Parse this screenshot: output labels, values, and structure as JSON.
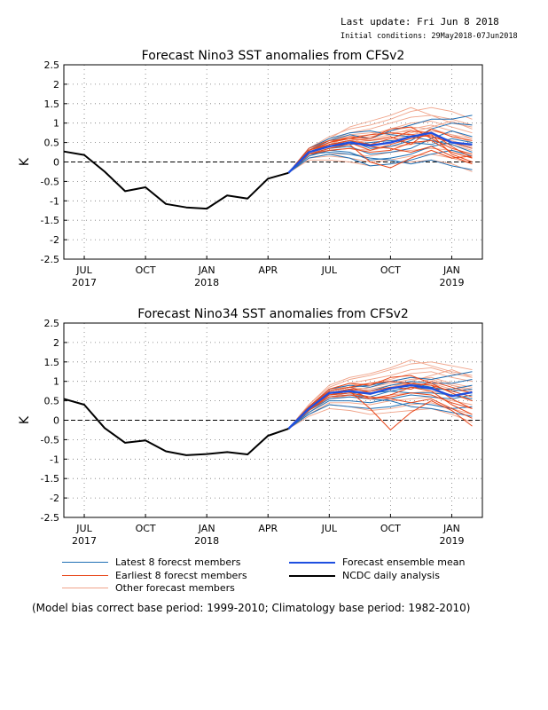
{
  "header": {
    "last_update": "Last update: Fri Jun  8 2018",
    "initial_conditions": "Initial conditions: 29May2018-07Jun2018"
  },
  "legend": {
    "latest": "Latest 8 forecst members",
    "earliest": "Earliest 8 forecst members",
    "other": "Other forecast members",
    "mean": "Forecast ensemble mean",
    "ncdc": "NCDC daily analysis"
  },
  "footnote": "(Model bias correct base period: 1999-2010; Climatology base period: 1982-2010)",
  "colors": {
    "latest": "#1f6fb4",
    "earliest": "#e8471a",
    "other": "#f0a48a",
    "mean": "#1e4fe0",
    "ncdc": "#000000"
  },
  "chart_data": [
    {
      "type": "line",
      "title": "Forecast Nino3 SST anomalies from CFSv2",
      "ylabel": "K",
      "ylim": [
        -2.5,
        2.5
      ],
      "yticks": [
        -2.5,
        -2,
        -1.5,
        -1,
        -0.5,
        0,
        0.5,
        1,
        1.5,
        2,
        2.5
      ],
      "xlim": [
        0,
        20.5
      ],
      "xticks": [
        {
          "x": 1,
          "label": "JUL",
          "year": "2017"
        },
        {
          "x": 4,
          "label": "OCT",
          "year": ""
        },
        {
          "x": 7,
          "label": "JAN",
          "year": "2018"
        },
        {
          "x": 10,
          "label": "APR",
          "year": ""
        },
        {
          "x": 13,
          "label": "JUL",
          "year": ""
        },
        {
          "x": 16,
          "label": "OCT",
          "year": ""
        },
        {
          "x": 19,
          "label": "JAN",
          "year": "2019"
        }
      ],
      "grid": true,
      "observed": {
        "name": "NCDC daily analysis",
        "x": [
          0,
          1,
          2,
          3,
          4,
          5,
          6,
          7,
          8,
          9,
          10,
          11
        ],
        "y": [
          0.27,
          0.18,
          -0.25,
          -0.75,
          -0.65,
          -1.08,
          -1.17,
          -1.2,
          -0.86,
          -0.94,
          -0.43,
          -0.28
        ]
      },
      "forecast_x": [
        11,
        12,
        13,
        14,
        15,
        16,
        17,
        18,
        19,
        20
      ],
      "ensemble_mean": [
        -0.28,
        0.25,
        0.4,
        0.5,
        0.42,
        0.5,
        0.65,
        0.75,
        0.5,
        0.45
      ],
      "latest_members": [
        [
          -0.28,
          0.3,
          0.55,
          0.7,
          0.6,
          0.8,
          0.95,
          1.1,
          1.1,
          1.2
        ],
        [
          -0.28,
          0.25,
          0.45,
          0.55,
          0.35,
          0.4,
          0.55,
          0.85,
          1.0,
          0.95
        ],
        [
          -0.28,
          0.2,
          0.35,
          0.4,
          0.2,
          0.25,
          0.35,
          0.6,
          0.8,
          0.65
        ],
        [
          -0.28,
          0.15,
          0.3,
          0.25,
          0.05,
          0.1,
          0.2,
          0.4,
          0.5,
          0.35
        ],
        [
          -0.28,
          0.1,
          0.2,
          0.1,
          -0.1,
          -0.05,
          0.05,
          0.2,
          0.3,
          0.15
        ],
        [
          -0.28,
          0.2,
          0.25,
          0.2,
          0.1,
          0.05,
          -0.05,
          0.05,
          -0.1,
          -0.2
        ],
        [
          -0.28,
          0.35,
          0.6,
          0.75,
          0.8,
          0.7,
          0.65,
          0.55,
          0.45,
          0.25
        ],
        [
          -0.28,
          0.25,
          0.4,
          0.45,
          0.5,
          0.55,
          0.5,
          0.45,
          0.6,
          0.5
        ]
      ],
      "earliest_members": [
        [
          -0.28,
          0.3,
          0.45,
          0.55,
          0.45,
          0.6,
          0.8,
          0.75,
          0.4,
          0.1
        ],
        [
          -0.28,
          0.25,
          0.4,
          0.5,
          0.3,
          0.45,
          0.6,
          0.7,
          0.2,
          0.0
        ],
        [
          -0.28,
          0.2,
          0.35,
          0.45,
          0.0,
          -0.15,
          0.1,
          0.3,
          0.1,
          0.15
        ],
        [
          -0.28,
          0.3,
          0.5,
          0.65,
          0.6,
          0.85,
          0.9,
          0.6,
          0.35,
          0.2
        ],
        [
          -0.28,
          0.35,
          0.55,
          0.6,
          0.55,
          0.65,
          0.45,
          0.85,
          0.65,
          0.55
        ],
        [
          -0.28,
          0.2,
          0.3,
          0.35,
          0.25,
          0.3,
          0.5,
          0.55,
          0.25,
          0.1
        ],
        [
          -0.28,
          0.25,
          0.45,
          0.5,
          0.4,
          0.35,
          0.25,
          0.4,
          0.15,
          -0.05
        ],
        [
          -0.28,
          0.3,
          0.5,
          0.6,
          0.7,
          0.75,
          0.7,
          0.65,
          0.5,
          0.35
        ]
      ],
      "other_members": [
        [
          -0.28,
          0.35,
          0.65,
          0.85,
          0.95,
          1.1,
          1.3,
          1.4,
          1.3,
          1.1
        ],
        [
          -0.28,
          0.3,
          0.55,
          0.75,
          0.85,
          1.0,
          1.15,
          1.2,
          1.0,
          0.9
        ],
        [
          -0.28,
          0.25,
          0.45,
          0.65,
          0.7,
          0.85,
          1.0,
          1.05,
          0.9,
          0.75
        ],
        [
          -0.28,
          0.2,
          0.4,
          0.55,
          0.6,
          0.7,
          0.85,
          0.95,
          0.8,
          0.6
        ],
        [
          -0.28,
          0.15,
          0.35,
          0.45,
          0.5,
          0.55,
          0.7,
          0.8,
          0.7,
          0.5
        ],
        [
          -0.28,
          0.25,
          0.5,
          0.6,
          0.45,
          0.5,
          0.6,
          0.7,
          0.55,
          0.4
        ],
        [
          -0.28,
          0.2,
          0.3,
          0.35,
          0.3,
          0.4,
          0.45,
          0.55,
          0.45,
          0.3
        ],
        [
          -0.28,
          0.1,
          0.2,
          0.2,
          0.15,
          0.25,
          0.3,
          0.35,
          0.3,
          0.2
        ],
        [
          -0.28,
          0.1,
          0.15,
          0.1,
          0.0,
          0.05,
          0.15,
          0.2,
          0.1,
          -0.05
        ],
        [
          -0.28,
          0.05,
          0.05,
          0.0,
          -0.1,
          -0.05,
          0.0,
          0.05,
          -0.05,
          -0.25
        ],
        [
          -0.28,
          0.3,
          0.6,
          0.9,
          1.05,
          1.2,
          1.4,
          1.2,
          1.1,
          0.95
        ],
        [
          -0.28,
          0.25,
          0.5,
          0.7,
          0.75,
          0.8,
          0.9,
          0.85,
          0.7,
          0.6
        ],
        [
          -0.28,
          0.2,
          0.35,
          0.5,
          0.55,
          0.6,
          0.75,
          0.9,
          1.05,
          0.85
        ],
        [
          -0.28,
          0.3,
          0.5,
          0.6,
          0.65,
          0.75,
          0.8,
          0.65,
          0.5,
          0.4
        ]
      ]
    },
    {
      "type": "line",
      "title": "Forecast Nino34 SST anomalies from CFSv2",
      "ylabel": "K",
      "ylim": [
        -2.5,
        2.5
      ],
      "yticks": [
        -2.5,
        -2,
        -1.5,
        -1,
        -0.5,
        0,
        0.5,
        1,
        1.5,
        2,
        2.5
      ],
      "xlim": [
        0,
        20.5
      ],
      "xticks": [
        {
          "x": 1,
          "label": "JUL",
          "year": "2017"
        },
        {
          "x": 4,
          "label": "OCT",
          "year": ""
        },
        {
          "x": 7,
          "label": "JAN",
          "year": "2018"
        },
        {
          "x": 10,
          "label": "APR",
          "year": ""
        },
        {
          "x": 13,
          "label": "JUL",
          "year": ""
        },
        {
          "x": 16,
          "label": "OCT",
          "year": ""
        },
        {
          "x": 19,
          "label": "JAN",
          "year": "2019"
        }
      ],
      "grid": true,
      "observed": {
        "name": "NCDC daily analysis",
        "x": [
          0,
          1,
          2,
          3,
          4,
          5,
          6,
          7,
          8,
          9,
          10,
          11
        ],
        "y": [
          0.55,
          0.4,
          -0.2,
          -0.58,
          -0.52,
          -0.8,
          -0.9,
          -0.87,
          -0.82,
          -0.88,
          -0.4,
          -0.22
        ]
      },
      "forecast_x": [
        11,
        12,
        13,
        14,
        15,
        16,
        17,
        18,
        19,
        20
      ],
      "ensemble_mean": [
        -0.22,
        0.3,
        0.7,
        0.75,
        0.68,
        0.82,
        0.9,
        0.82,
        0.62,
        0.72
      ],
      "latest_members": [
        [
          -0.22,
          0.35,
          0.8,
          0.9,
          0.85,
          1.0,
          1.1,
          1.05,
          1.15,
          1.25
        ],
        [
          -0.22,
          0.3,
          0.7,
          0.8,
          0.75,
          0.9,
          1.0,
          0.95,
          0.95,
          1.05
        ],
        [
          -0.22,
          0.25,
          0.6,
          0.65,
          0.6,
          0.75,
          0.85,
          0.8,
          0.8,
          0.9
        ],
        [
          -0.22,
          0.2,
          0.5,
          0.5,
          0.45,
          0.55,
          0.65,
          0.6,
          0.55,
          0.65
        ],
        [
          -0.22,
          0.15,
          0.4,
          0.35,
          0.3,
          0.35,
          0.45,
          0.4,
          0.3,
          0.35
        ],
        [
          -0.22,
          0.25,
          0.55,
          0.6,
          0.55,
          0.5,
          0.35,
          0.3,
          0.2,
          0.1
        ],
        [
          -0.22,
          0.35,
          0.75,
          0.85,
          0.9,
          1.0,
          0.95,
          0.85,
          0.75,
          0.8
        ],
        [
          -0.22,
          0.3,
          0.65,
          0.7,
          0.7,
          0.75,
          0.7,
          0.7,
          0.65,
          0.55
        ]
      ],
      "earliest_members": [
        [
          -0.22,
          0.35,
          0.75,
          0.85,
          0.7,
          0.8,
          0.95,
          0.9,
          0.55,
          0.3
        ],
        [
          -0.22,
          0.3,
          0.7,
          0.8,
          0.55,
          0.65,
          0.85,
          0.75,
          0.4,
          0.15
        ],
        [
          -0.22,
          0.25,
          0.65,
          0.75,
          0.3,
          -0.25,
          0.2,
          0.5,
          0.25,
          -0.15
        ],
        [
          -0.22,
          0.35,
          0.8,
          0.95,
          0.9,
          1.1,
          1.15,
          0.95,
          0.7,
          0.5
        ],
        [
          -0.22,
          0.3,
          0.7,
          0.8,
          0.75,
          0.85,
          0.8,
          1.0,
          0.85,
          0.7
        ],
        [
          -0.22,
          0.25,
          0.6,
          0.65,
          0.55,
          0.6,
          0.7,
          0.65,
          0.45,
          0.3
        ],
        [
          -0.22,
          0.3,
          0.65,
          0.7,
          0.6,
          0.55,
          0.45,
          0.55,
          0.3,
          0.05
        ],
        [
          -0.22,
          0.35,
          0.75,
          0.85,
          0.95,
          1.0,
          0.95,
          0.9,
          0.75,
          0.6
        ]
      ],
      "other_members": [
        [
          -0.22,
          0.4,
          0.85,
          1.05,
          1.15,
          1.3,
          1.45,
          1.5,
          1.4,
          1.3
        ],
        [
          -0.22,
          0.35,
          0.8,
          0.95,
          1.05,
          1.15,
          1.3,
          1.35,
          1.2,
          1.1
        ],
        [
          -0.22,
          0.3,
          0.75,
          0.85,
          0.95,
          1.05,
          1.2,
          1.25,
          1.1,
          1.0
        ],
        [
          -0.22,
          0.25,
          0.65,
          0.75,
          0.85,
          0.95,
          1.05,
          1.1,
          0.95,
          0.85
        ],
        [
          -0.22,
          0.2,
          0.55,
          0.65,
          0.7,
          0.8,
          0.9,
          0.95,
          0.8,
          0.7
        ],
        [
          -0.22,
          0.3,
          0.7,
          0.8,
          0.75,
          0.85,
          0.95,
          1.05,
          0.9,
          0.75
        ],
        [
          -0.22,
          0.25,
          0.6,
          0.6,
          0.55,
          0.65,
          0.7,
          0.75,
          0.65,
          0.5
        ],
        [
          -0.22,
          0.15,
          0.45,
          0.45,
          0.4,
          0.5,
          0.55,
          0.6,
          0.5,
          0.4
        ],
        [
          -0.22,
          0.15,
          0.4,
          0.35,
          0.25,
          0.3,
          0.4,
          0.45,
          0.3,
          0.15
        ],
        [
          -0.22,
          0.1,
          0.3,
          0.25,
          0.15,
          0.2,
          0.25,
          0.3,
          0.15,
          -0.05
        ],
        [
          -0.22,
          0.4,
          0.9,
          1.1,
          1.2,
          1.35,
          1.55,
          1.4,
          1.25,
          1.15
        ],
        [
          -0.22,
          0.35,
          0.75,
          0.9,
          0.95,
          1.0,
          1.1,
          1.05,
          0.9,
          0.8
        ],
        [
          -0.22,
          0.3,
          0.6,
          0.7,
          0.75,
          0.85,
          1.0,
          1.15,
          1.3,
          1.1
        ],
        [
          -0.22,
          0.35,
          0.8,
          0.85,
          0.8,
          0.9,
          0.95,
          0.8,
          0.65,
          0.55
        ]
      ]
    }
  ]
}
